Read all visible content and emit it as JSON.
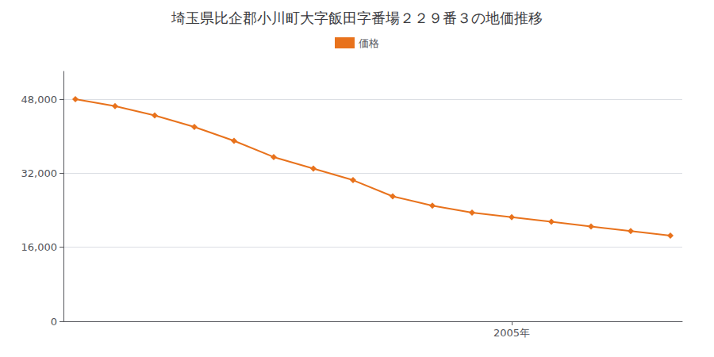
{
  "chart_data": {
    "type": "line",
    "title": "埼玉県比企郡小川町大字飯田字番場２２９番３の地価推移",
    "x": [
      1994,
      1995,
      1996,
      1997,
      1998,
      1999,
      2000,
      2001,
      2002,
      2003,
      2004,
      2005,
      2006,
      2007,
      2008,
      2009
    ],
    "series": [
      {
        "name": "価格",
        "color": "#e8721c",
        "marker": "diamond",
        "values": [
          48000,
          46500,
          44500,
          42000,
          39000,
          35500,
          33000,
          30500,
          27000,
          25000,
          23500,
          22500,
          21500,
          20500,
          19500,
          18500
        ]
      }
    ],
    "xlim": [
      1993.7,
      2009.3
    ],
    "xticks": [
      {
        "value": 2005,
        "label": "2005年"
      }
    ],
    "ylim": [
      0,
      54000
    ],
    "yticks": [
      0,
      {
        "value": 16000,
        "label": "16,000"
      },
      {
        "value": 32000,
        "label": "32,000"
      },
      {
        "value": 48000,
        "label": "48,000"
      }
    ],
    "grid": "y",
    "legend": "top"
  }
}
